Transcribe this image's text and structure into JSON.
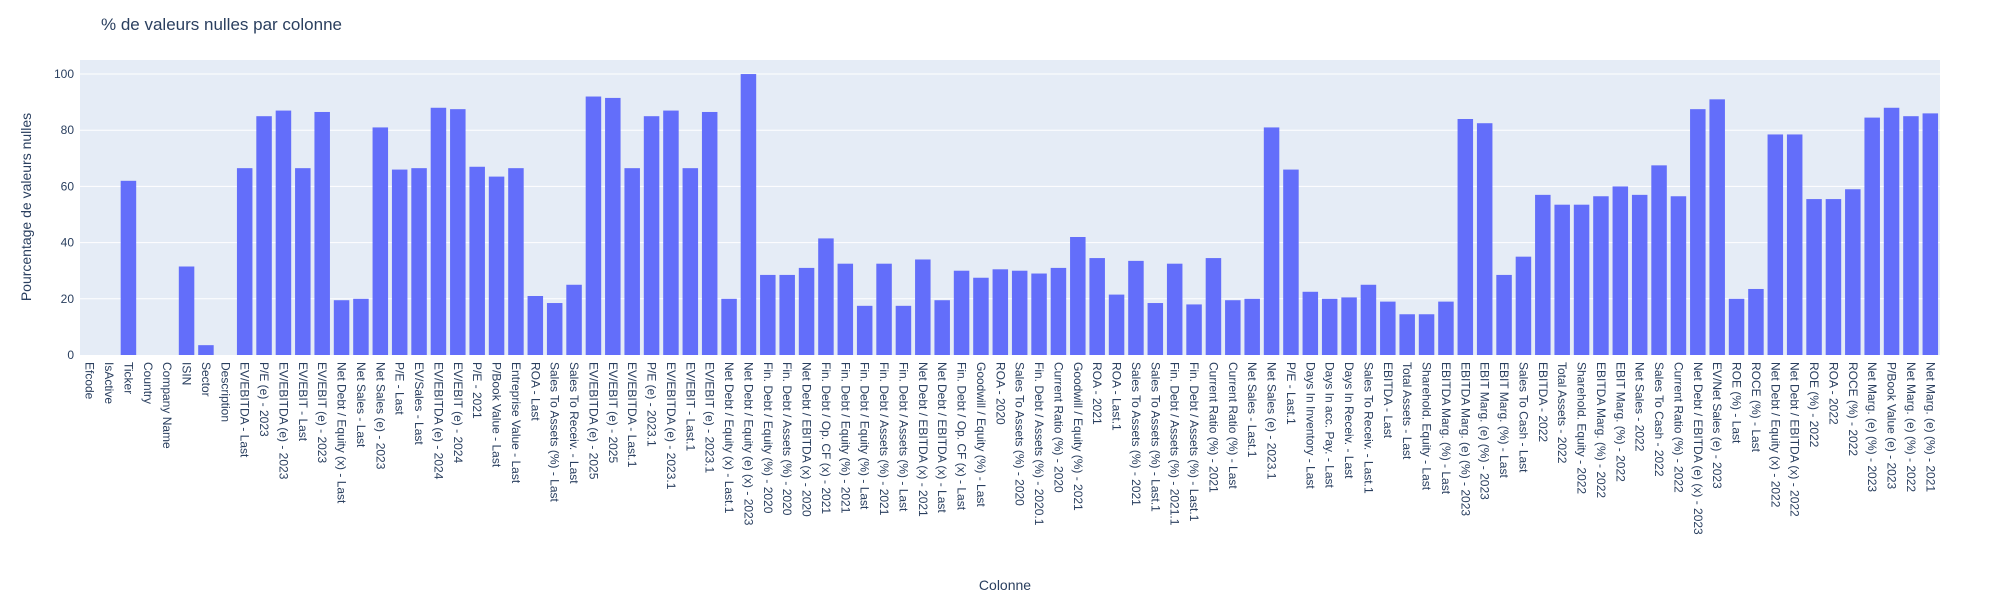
{
  "chart_data": {
    "type": "bar",
    "title": "% de valeurs nulles par colonne",
    "xlabel": "Colonne",
    "ylabel": "Pourcentage de valeurs nulles",
    "ylim": [
      0,
      105
    ],
    "yticks": [
      0,
      20,
      40,
      60,
      80,
      100
    ],
    "grid": true,
    "bar_color": "#636efa",
    "plot_bg_color": "#e5ecf6",
    "categories": [
      "Efcode",
      "IsActive",
      "Ticker",
      "Country",
      "Company Name",
      "ISIN",
      "Sector",
      "Description",
      "EV/EBITDA - Last",
      "P/E (e) - 2023",
      "EV/EBITDA (e) - 2023",
      "EV/EBIT - Last",
      "EV/EBIT (e) - 2023",
      "Net Debt / Equity (x) - Last",
      "Net Sales - Last",
      "Net Sales (e) - 2023",
      "P/E - Last",
      "EV/Sales - Last",
      "EV/EBITDA (e) - 2024",
      "EV/EBIT (e) - 2024",
      "P/E - 2021",
      "P/Book Value - Last",
      "Entreprise Value - Last",
      "ROA - Last",
      "Sales To Assets (%) - Last",
      "Sales To Receiv. - Last",
      "EV/EBITDA (e) - 2025",
      "EV/EBIT (e) - 2025",
      "EV/EBITDA - Last.1",
      "P/E (e) - 2023.1",
      "EV/EBITDA (e) - 2023.1",
      "EV/EBIT - Last.1",
      "EV/EBIT (e) - 2023.1",
      "Net Debt / Equity (x) - Last.1",
      "Net Debt / Equity (e) (x) - 2023",
      "Fin. Debt / Equity (%) - 2020",
      "Fin. Debt / Assets (%) - 2020",
      "Net Debt / EBITDA (x) - 2020",
      "Fin. Debt / Op. CF (x) - 2021",
      "Fin. Debt / Equity (%) - 2021",
      "Fin. Debt / Equity (%) - Last",
      "Fin. Debt / Assets (%) - 2021",
      "Fin. Debt / Assets (%) - Last",
      "Net Debt / EBITDA (x) - 2021",
      "Net Debt / EBITDA (x) - Last",
      "Fin. Debt / Op. CF (x) - Last",
      "Goodwill / Equity (%) - Last",
      "ROA - 2020",
      "Sales To Assets (%) - 2020",
      "Fin. Debt / Assets (%) - 2020.1",
      "Current Ratio (%) - 2020",
      "Goodwill / Equity (%) - 2021",
      "ROA - 2021",
      "ROA - Last.1",
      "Sales To Assets (%) - 2021",
      "Sales To Assets (%) - Last.1",
      "Fin. Debt / Assets (%) - 2021.1",
      "Fin. Debt / Assets (%) - Last.1",
      "Current Ratio (%) - 2021",
      "Current Ratio (%) - Last",
      "Net Sales - Last.1",
      "Net Sales (e) - 2023.1",
      "P/E - Last.1",
      "Days In Inventory - Last",
      "Days In acc. Pay. - Last",
      "Days In Receiv. - Last",
      "Sales To Receiv. - Last.1",
      "EBITDA - Last",
      "Total Assets - Last",
      "Sharehold. Equity - Last",
      "EBITDA Marg. (%) - Last",
      "EBITDA Marg. (e) (%) - 2023",
      "EBIT Marg. (e) (%) - 2023",
      "EBIT Marg. (%) - Last",
      "Sales To Cash - Last",
      "EBITDA - 2022",
      "Total Assets - 2022",
      "Sharehold. Equity - 2022",
      "EBITDA Marg. (%) - 2022",
      "EBIT Marg. (%) - 2022",
      "Net Sales - 2022",
      "Sales To Cash - 2022",
      "Current Ratio (%) - 2022",
      "Net Debt / EBITDA (e) (x) - 2023",
      "EV/Net Sales (e) - 2023",
      "ROE (%) - Last",
      "ROCE (%) - Last",
      "Net Debt / Equity (x) - 2022",
      "Net Debt / EBITDA (x) - 2022",
      "ROE (%) - 2022",
      "ROA - 2022",
      "ROCE (%) - 2022",
      "Net Marg. (e) (%) - 2023",
      "P/Book Value (e) - 2023",
      "Net Marg. (e) (%) - 2022",
      "Net Marg. (e) (%) - 2021"
    ],
    "values": [
      0,
      0,
      62,
      0,
      0,
      31.5,
      3.5,
      0,
      66.5,
      85,
      87,
      66.5,
      86.5,
      19.5,
      20,
      81,
      66,
      66.5,
      88,
      87.5,
      67,
      63.5,
      66.5,
      21,
      18.5,
      25,
      92,
      91.5,
      66.5,
      85,
      87,
      66.5,
      86.5,
      20,
      100,
      28.5,
      28.5,
      31,
      41.5,
      32.5,
      17.5,
      32.5,
      17.5,
      34,
      19.5,
      30,
      27.5,
      30.5,
      30,
      29,
      31,
      42,
      34.5,
      21.5,
      33.5,
      18.5,
      32.5,
      18,
      34.5,
      19.5,
      20,
      81,
      66,
      22.5,
      20,
      20.5,
      25,
      19,
      14.5,
      14.5,
      19,
      84,
      82.5,
      28.5,
      35,
      57,
      53.5,
      53.5,
      56.5,
      60,
      57,
      67.5,
      56.5,
      87.5,
      91,
      20,
      23.5,
      78.5,
      78.5,
      55.5,
      55.5,
      59,
      84.5,
      88,
      85,
      86
    ]
  }
}
